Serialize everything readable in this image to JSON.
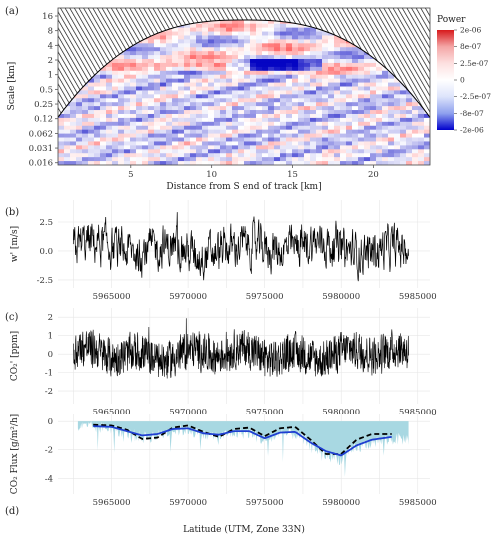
{
  "chart_data": [
    {
      "panel": "(a)",
      "type": "heatmap",
      "xlabel": "Distance from  S end of track [km]",
      "ylabel": "Scale [km]",
      "x_ticks": [
        5,
        10,
        15,
        20
      ],
      "x_range": [
        0.5,
        23.5
      ],
      "y_ticks": [
        "16",
        "8",
        "4",
        "2",
        "1",
        "0.5",
        "0.25",
        "0.12",
        "0.062",
        "0.031",
        "0.016"
      ],
      "y_scale": "log2",
      "legend": {
        "title": "Power",
        "labels": [
          "2e-06",
          "8e-07",
          "2.5e-07",
          "0",
          "-2.5e-07",
          "-8e-07",
          "-2e-06"
        ],
        "colors": [
          "#d7191c",
          "#f4a6a6",
          "#fde0e0",
          "#ffffff",
          "#dde4fb",
          "#8fa1ee",
          "#0000cc"
        ]
      },
      "cone_of_influence": "hatched"
    },
    {
      "panel": "(b)",
      "type": "line",
      "ylabel": "w' [m/s]",
      "y_ticks": [
        -2.5,
        0.0,
        2.5
      ],
      "y_tick_labels": [
        "-2.5",
        "0.0",
        "2.5"
      ],
      "ylim": [
        -3.2,
        4.4
      ],
      "x_ticks": [
        5965000,
        5970000,
        5975000,
        5980000,
        5985000
      ],
      "x_tick_labels": [
        "5965000",
        "5970000",
        "5975000",
        "5980000",
        "5985000"
      ],
      "xlim": [
        5961500,
        5985800
      ],
      "series": [
        {
          "color": "#000000",
          "x_range": [
            5962500,
            5984400
          ],
          "mean": 0.2,
          "amplitude": 1.1
        }
      ]
    },
    {
      "panel": "(c)",
      "type": "line",
      "ylabel": "CO₂' [ppm]",
      "y_ticks": [
        -2,
        -1,
        0,
        1,
        2
      ],
      "y_tick_labels": [
        "-2",
        "-1",
        "0",
        "1",
        "2"
      ],
      "ylim": [
        -2.7,
        2.5
      ],
      "x_ticks": [
        5965000,
        5970000,
        5975000,
        5980000,
        5985000
      ],
      "x_tick_labels": [
        "5965000",
        "5970000",
        "5975000",
        "5980000",
        "5985000"
      ],
      "xlim": [
        5961500,
        5985800
      ],
      "series": [
        {
          "color": "#000000",
          "x_range": [
            5962500,
            5984400
          ],
          "mean": 0.0,
          "amplitude": 0.75
        }
      ]
    },
    {
      "panel": "(d)",
      "type": "area",
      "ylabel": "CO₂ Flux  [g/m²/h]",
      "xlabel": "Latitude (UTM, Zone 33N)",
      "y_ticks": [
        -4,
        -2,
        0
      ],
      "y_tick_labels": [
        "-4",
        "-2",
        "0"
      ],
      "ylim": [
        -5.1,
        0.5
      ],
      "x_ticks": [
        5965000,
        5970000,
        5975000,
        5980000,
        5985000
      ],
      "x_tick_labels": [
        "5965000",
        "5970000",
        "5975000",
        "5980000",
        "5985000"
      ],
      "xlim": [
        5961500,
        5985800
      ],
      "area_color": "#a8d8e2",
      "dashed_color": "#000000",
      "smooth_color": "#1f3fd1",
      "smooth_x": [
        5963800,
        5965000,
        5966000,
        5967000,
        5968000,
        5969000,
        5970000,
        5971000,
        5972000,
        5973000,
        5974000,
        5975000,
        5976000,
        5977000,
        5978000,
        5979000,
        5980000,
        5981000,
        5982000,
        5983300
      ],
      "smooth_y": [
        -0.35,
        -0.4,
        -0.7,
        -1.0,
        -0.9,
        -0.55,
        -0.5,
        -0.85,
        -0.95,
        -0.7,
        -0.7,
        -1.2,
        -0.8,
        -0.75,
        -1.5,
        -2.1,
        -2.4,
        -1.7,
        -1.3,
        -1.1
      ],
      "dashed_y": [
        -0.25,
        -0.3,
        -0.6,
        -1.25,
        -1.15,
        -0.45,
        -0.3,
        -0.75,
        -1.1,
        -0.55,
        -0.45,
        -1.05,
        -0.5,
        -0.4,
        -1.3,
        -2.3,
        -2.3,
        -1.3,
        -0.9,
        -0.9
      ]
    }
  ]
}
